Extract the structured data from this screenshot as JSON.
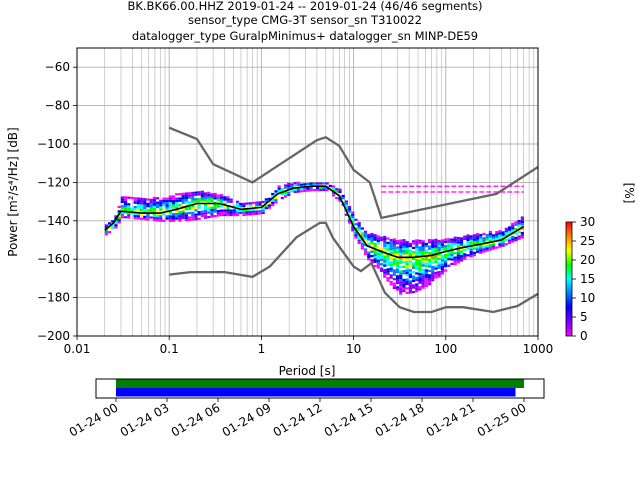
{
  "title": {
    "line1": "BK.BK66.00.HHZ   2019-01-24 -- 2019-01-24  (46/46 segments)",
    "line2": "sensor_type CMG-3T sensor_sn T310022",
    "line3": "datalogger_type GuralpMinimus+ datalogger_sn MINP-DE59"
  },
  "chart_data": [
    {
      "type": "heatmap",
      "xlabel": "Period [s]",
      "ylabel": "Power [m²/s⁴/Hz] [dB]",
      "xscale": "log",
      "xlim": [
        0.01,
        1000
      ],
      "ylim": [
        -200,
        -50
      ],
      "grid": true,
      "xticks": [
        {
          "value": 0.01,
          "label": "0.01"
        },
        {
          "value": 0.1,
          "label": "0.1"
        },
        {
          "value": 1,
          "label": "1"
        },
        {
          "value": 10,
          "label": "10"
        },
        {
          "value": 100,
          "label": "100"
        },
        {
          "value": 1000,
          "label": "1000"
        }
      ],
      "yticks": [
        {
          "value": -60,
          "label": "−60"
        },
        {
          "value": -80,
          "label": "−80"
        },
        {
          "value": -100,
          "label": "−100"
        },
        {
          "value": -120,
          "label": "−120"
        },
        {
          "value": -140,
          "label": "−140"
        },
        {
          "value": -160,
          "label": "−160"
        },
        {
          "value": -180,
          "label": "−180"
        },
        {
          "value": -200,
          "label": "−200"
        }
      ],
      "colorbar": {
        "label": "[%]",
        "range": [
          0,
          30
        ],
        "ticks": [
          {
            "value": 0,
            "label": "0"
          },
          {
            "value": 5,
            "label": "5"
          },
          {
            "value": 10,
            "label": "10"
          },
          {
            "value": 15,
            "label": "15"
          },
          {
            "value": 20,
            "label": "20"
          },
          {
            "value": 25,
            "label": "25"
          },
          {
            "value": 30,
            "label": "30"
          }
        ]
      },
      "psd_band": {
        "periods": [
          0.02,
          0.025,
          0.03,
          0.05,
          0.08,
          0.12,
          0.2,
          0.35,
          0.6,
          1.0,
          1.5,
          2.2,
          3.5,
          5.0,
          7.0,
          10.0,
          14.0,
          20.0,
          30.0,
          45.0,
          70.0,
          100.0,
          150.0,
          250.0,
          400.0,
          700.0
        ],
        "median": [
          -145,
          -141,
          -135,
          -136,
          -136,
          -134,
          -131,
          -131,
          -134,
          -133,
          -126,
          -123,
          -122,
          -122,
          -127,
          -143,
          -153,
          -156,
          -159,
          -159,
          -158,
          -156,
          -154,
          -152,
          -150,
          -143
        ],
        "spread_low": [
          -147,
          -144,
          -138,
          -139,
          -140,
          -140,
          -139,
          -137,
          -137,
          -136,
          -129,
          -125,
          -124,
          -124,
          -130,
          -148,
          -160,
          -168,
          -178,
          -177,
          -172,
          -165,
          -160,
          -156,
          -153,
          -148
        ],
        "spread_high": [
          -142,
          -138,
          -127,
          -128,
          -128,
          -126,
          -124,
          -126,
          -131,
          -130,
          -122,
          -120,
          -120,
          -120,
          -124,
          -138,
          -146,
          -148,
          -150,
          -150,
          -150,
          -149,
          -148,
          -146,
          -145,
          -137
        ],
        "outliers": [
          {
            "x": 20,
            "y": -125,
            "x2": 700,
            "y2": -125
          },
          {
            "x": 20,
            "y": -122,
            "x2": 700,
            "y2": -122
          }
        ]
      },
      "noise_models": [
        {
          "x": [
            0.1,
            0.2,
            0.3,
            0.8,
            4.0,
            5.0,
            7.0,
            10.0,
            15.0,
            20.0,
            354.0,
            1000.0
          ],
          "y": [
            -91.5,
            -97.4,
            -110.5,
            -120,
            -98,
            -96.5,
            -101,
            -113.5,
            -120,
            -138.5,
            -126,
            -112
          ]
        },
        {
          "x": [
            0.1,
            0.17,
            0.4,
            0.8,
            1.24,
            2.4,
            4.3,
            5.0,
            6.0,
            10.0,
            12.0,
            15.6,
            21.9,
            31.6,
            45.0,
            70.0,
            101.0,
            154.0,
            328.0,
            600.0,
            1000.0
          ],
          "y": [
            -168,
            -166.7,
            -166.7,
            -169.2,
            -163.7,
            -148.6,
            -141.1,
            -141.1,
            -149,
            -163.8,
            -166.2,
            -162.1,
            -177.5,
            -185,
            -187.5,
            -187.5,
            -185,
            -185,
            -187.5,
            -184.4,
            -178
          ]
        }
      ]
    },
    {
      "type": "bar",
      "title": "",
      "xlim": [
        "01-24 00",
        "01-25 00"
      ],
      "xticks": [
        "01-24 00",
        "01-24 03",
        "01-24 06",
        "01-24 09",
        "01-24 12",
        "01-24 15",
        "01-24 18",
        "01-24 21",
        "01-25 00"
      ],
      "series": [
        {
          "color": "#008000",
          "start_hour": 0,
          "end_hour": 24.0
        },
        {
          "color": "#0000ff",
          "start_hour": 0,
          "end_hour": 23.5
        }
      ]
    }
  ]
}
